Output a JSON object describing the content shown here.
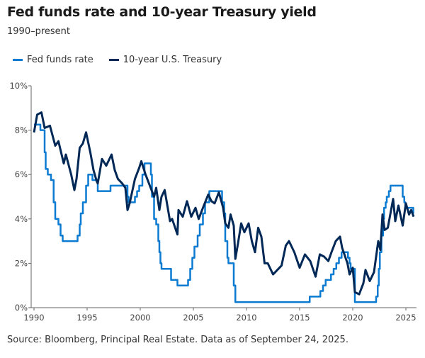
{
  "chart_data": {
    "type": "line",
    "title": "Fed funds rate and 10-year Treasury yield",
    "subtitle": "1990–present",
    "source": "Source: Bloomberg, Principal Real Estate. Data as of September 24, 2025.",
    "xlim": [
      1990,
      2026
    ],
    "ylim": [
      0,
      10
    ],
    "x_ticks": [
      1990,
      1995,
      2000,
      2005,
      2010,
      2015,
      2020,
      2025
    ],
    "x_tick_labels": [
      "1990",
      "1995",
      "2000",
      "2005",
      "2010",
      "2015",
      "2020",
      "2025"
    ],
    "y_ticks": [
      0,
      2,
      4,
      6,
      8,
      10
    ],
    "y_tick_labels": [
      "0%",
      "2%",
      "4%",
      "6%",
      "8%",
      "10%"
    ],
    "grid": false,
    "legend_placement": "top-left",
    "series": [
      {
        "name": "Fed funds rate",
        "color": "#0b7ad1",
        "step": true,
        "points": [
          [
            1990.0,
            8.25
          ],
          [
            1990.6,
            8.0
          ],
          [
            1991.0,
            7.0
          ],
          [
            1991.1,
            6.25
          ],
          [
            1991.3,
            6.0
          ],
          [
            1991.6,
            5.75
          ],
          [
            1991.85,
            4.75
          ],
          [
            1992.0,
            4.0
          ],
          [
            1992.3,
            3.75
          ],
          [
            1992.5,
            3.25
          ],
          [
            1992.7,
            3.0
          ],
          [
            1994.1,
            3.25
          ],
          [
            1994.3,
            3.75
          ],
          [
            1994.4,
            4.25
          ],
          [
            1994.6,
            4.75
          ],
          [
            1994.9,
            5.5
          ],
          [
            1995.1,
            6.0
          ],
          [
            1995.5,
            5.75
          ],
          [
            1996.0,
            5.25
          ],
          [
            1997.2,
            5.5
          ],
          [
            1998.8,
            5.0
          ],
          [
            1998.9,
            4.75
          ],
          [
            1999.5,
            5.0
          ],
          [
            1999.7,
            5.25
          ],
          [
            1999.9,
            5.5
          ],
          [
            2000.2,
            6.0
          ],
          [
            2000.4,
            6.5
          ],
          [
            2001.0,
            6.0
          ],
          [
            2001.1,
            5.0
          ],
          [
            2001.3,
            4.0
          ],
          [
            2001.5,
            3.75
          ],
          [
            2001.7,
            3.0
          ],
          [
            2001.8,
            2.5
          ],
          [
            2001.9,
            2.0
          ],
          [
            2002.0,
            1.75
          ],
          [
            2002.9,
            1.25
          ],
          [
            2003.5,
            1.0
          ],
          [
            2004.5,
            1.25
          ],
          [
            2004.7,
            1.75
          ],
          [
            2004.9,
            2.25
          ],
          [
            2005.1,
            2.75
          ],
          [
            2005.4,
            3.25
          ],
          [
            2005.6,
            3.75
          ],
          [
            2005.9,
            4.25
          ],
          [
            2006.1,
            4.75
          ],
          [
            2006.5,
            5.25
          ],
          [
            2007.7,
            4.75
          ],
          [
            2007.9,
            4.25
          ],
          [
            2008.0,
            3.0
          ],
          [
            2008.2,
            2.25
          ],
          [
            2008.3,
            2.0
          ],
          [
            2008.8,
            1.0
          ],
          [
            2008.95,
            0.25
          ],
          [
            2015.95,
            0.5
          ],
          [
            2016.95,
            0.75
          ],
          [
            2017.2,
            1.0
          ],
          [
            2017.45,
            1.25
          ],
          [
            2017.95,
            1.5
          ],
          [
            2018.2,
            1.75
          ],
          [
            2018.45,
            2.0
          ],
          [
            2018.7,
            2.25
          ],
          [
            2018.95,
            2.5
          ],
          [
            2019.55,
            2.25
          ],
          [
            2019.7,
            2.0
          ],
          [
            2019.8,
            1.75
          ],
          [
            2020.2,
            0.25
          ],
          [
            2022.2,
            0.5
          ],
          [
            2022.35,
            1.0
          ],
          [
            2022.45,
            1.75
          ],
          [
            2022.55,
            2.5
          ],
          [
            2022.7,
            3.25
          ],
          [
            2022.85,
            4.0
          ],
          [
            2022.95,
            4.5
          ],
          [
            2023.1,
            4.75
          ],
          [
            2023.2,
            5.0
          ],
          [
            2023.4,
            5.25
          ],
          [
            2023.55,
            5.5
          ],
          [
            2024.7,
            5.0
          ],
          [
            2024.85,
            4.75
          ],
          [
            2024.95,
            4.5
          ],
          [
            2025.7,
            4.25
          ],
          [
            2025.75,
            4.25
          ]
        ]
      },
      {
        "name": "10-year U.S. Treasury",
        "color": "#002856",
        "step": false,
        "points": [
          [
            1990.0,
            7.9
          ],
          [
            1990.3,
            8.7
          ],
          [
            1990.7,
            8.8
          ],
          [
            1991.0,
            8.1
          ],
          [
            1991.5,
            8.2
          ],
          [
            1992.0,
            7.3
          ],
          [
            1992.3,
            7.5
          ],
          [
            1992.8,
            6.5
          ],
          [
            1993.0,
            6.9
          ],
          [
            1993.5,
            6.0
          ],
          [
            1993.8,
            5.3
          ],
          [
            1994.0,
            5.8
          ],
          [
            1994.3,
            7.2
          ],
          [
            1994.6,
            7.4
          ],
          [
            1994.9,
            7.9
          ],
          [
            1995.3,
            7.0
          ],
          [
            1995.6,
            6.2
          ],
          [
            1995.9,
            5.7
          ],
          [
            1996.0,
            5.6
          ],
          [
            1996.4,
            6.7
          ],
          [
            1996.8,
            6.4
          ],
          [
            1997.3,
            6.9
          ],
          [
            1997.6,
            6.2
          ],
          [
            1997.9,
            5.8
          ],
          [
            1998.3,
            5.6
          ],
          [
            1998.6,
            5.4
          ],
          [
            1998.8,
            4.4
          ],
          [
            1999.0,
            4.7
          ],
          [
            1999.5,
            5.8
          ],
          [
            1999.9,
            6.3
          ],
          [
            2000.1,
            6.6
          ],
          [
            2000.5,
            6.0
          ],
          [
            2000.9,
            5.5
          ],
          [
            2001.3,
            5.0
          ],
          [
            2001.5,
            5.4
          ],
          [
            2001.8,
            4.4
          ],
          [
            2002.0,
            5.0
          ],
          [
            2002.3,
            5.3
          ],
          [
            2002.8,
            3.9
          ],
          [
            2003.0,
            4.0
          ],
          [
            2003.5,
            3.3
          ],
          [
            2003.6,
            4.4
          ],
          [
            2004.0,
            4.1
          ],
          [
            2004.4,
            4.8
          ],
          [
            2004.8,
            4.1
          ],
          [
            2005.2,
            4.5
          ],
          [
            2005.5,
            4.0
          ],
          [
            2005.9,
            4.5
          ],
          [
            2006.4,
            5.1
          ],
          [
            2006.7,
            4.8
          ],
          [
            2007.0,
            4.7
          ],
          [
            2007.4,
            5.2
          ],
          [
            2007.8,
            4.5
          ],
          [
            2008.0,
            3.8
          ],
          [
            2008.3,
            3.6
          ],
          [
            2008.5,
            4.2
          ],
          [
            2008.8,
            3.7
          ],
          [
            2008.95,
            2.2
          ],
          [
            2009.2,
            2.9
          ],
          [
            2009.5,
            3.8
          ],
          [
            2009.8,
            3.4
          ],
          [
            2010.2,
            3.8
          ],
          [
            2010.5,
            3.0
          ],
          [
            2010.8,
            2.5
          ],
          [
            2011.1,
            3.6
          ],
          [
            2011.4,
            3.2
          ],
          [
            2011.7,
            2.0
          ],
          [
            2012.0,
            2.0
          ],
          [
            2012.5,
            1.5
          ],
          [
            2012.9,
            1.7
          ],
          [
            2013.3,
            1.9
          ],
          [
            2013.7,
            2.8
          ],
          [
            2014.0,
            3.0
          ],
          [
            2014.5,
            2.5
          ],
          [
            2015.0,
            1.8
          ],
          [
            2015.5,
            2.4
          ],
          [
            2016.0,
            2.1
          ],
          [
            2016.5,
            1.4
          ],
          [
            2016.9,
            2.4
          ],
          [
            2017.3,
            2.3
          ],
          [
            2017.7,
            2.1
          ],
          [
            2018.0,
            2.5
          ],
          [
            2018.4,
            3.0
          ],
          [
            2018.8,
            3.2
          ],
          [
            2019.0,
            2.7
          ],
          [
            2019.5,
            2.0
          ],
          [
            2019.7,
            1.5
          ],
          [
            2020.0,
            1.8
          ],
          [
            2020.2,
            0.7
          ],
          [
            2020.6,
            0.6
          ],
          [
            2021.0,
            1.1
          ],
          [
            2021.2,
            1.7
          ],
          [
            2021.6,
            1.2
          ],
          [
            2022.0,
            1.6
          ],
          [
            2022.4,
            3.0
          ],
          [
            2022.6,
            2.6
          ],
          [
            2022.8,
            4.2
          ],
          [
            2023.0,
            3.5
          ],
          [
            2023.3,
            3.6
          ],
          [
            2023.8,
            4.9
          ],
          [
            2024.0,
            3.9
          ],
          [
            2024.3,
            4.6
          ],
          [
            2024.7,
            3.7
          ],
          [
            2025.0,
            4.7
          ],
          [
            2025.3,
            4.2
          ],
          [
            2025.5,
            4.4
          ],
          [
            2025.73,
            4.1
          ]
        ]
      }
    ]
  }
}
